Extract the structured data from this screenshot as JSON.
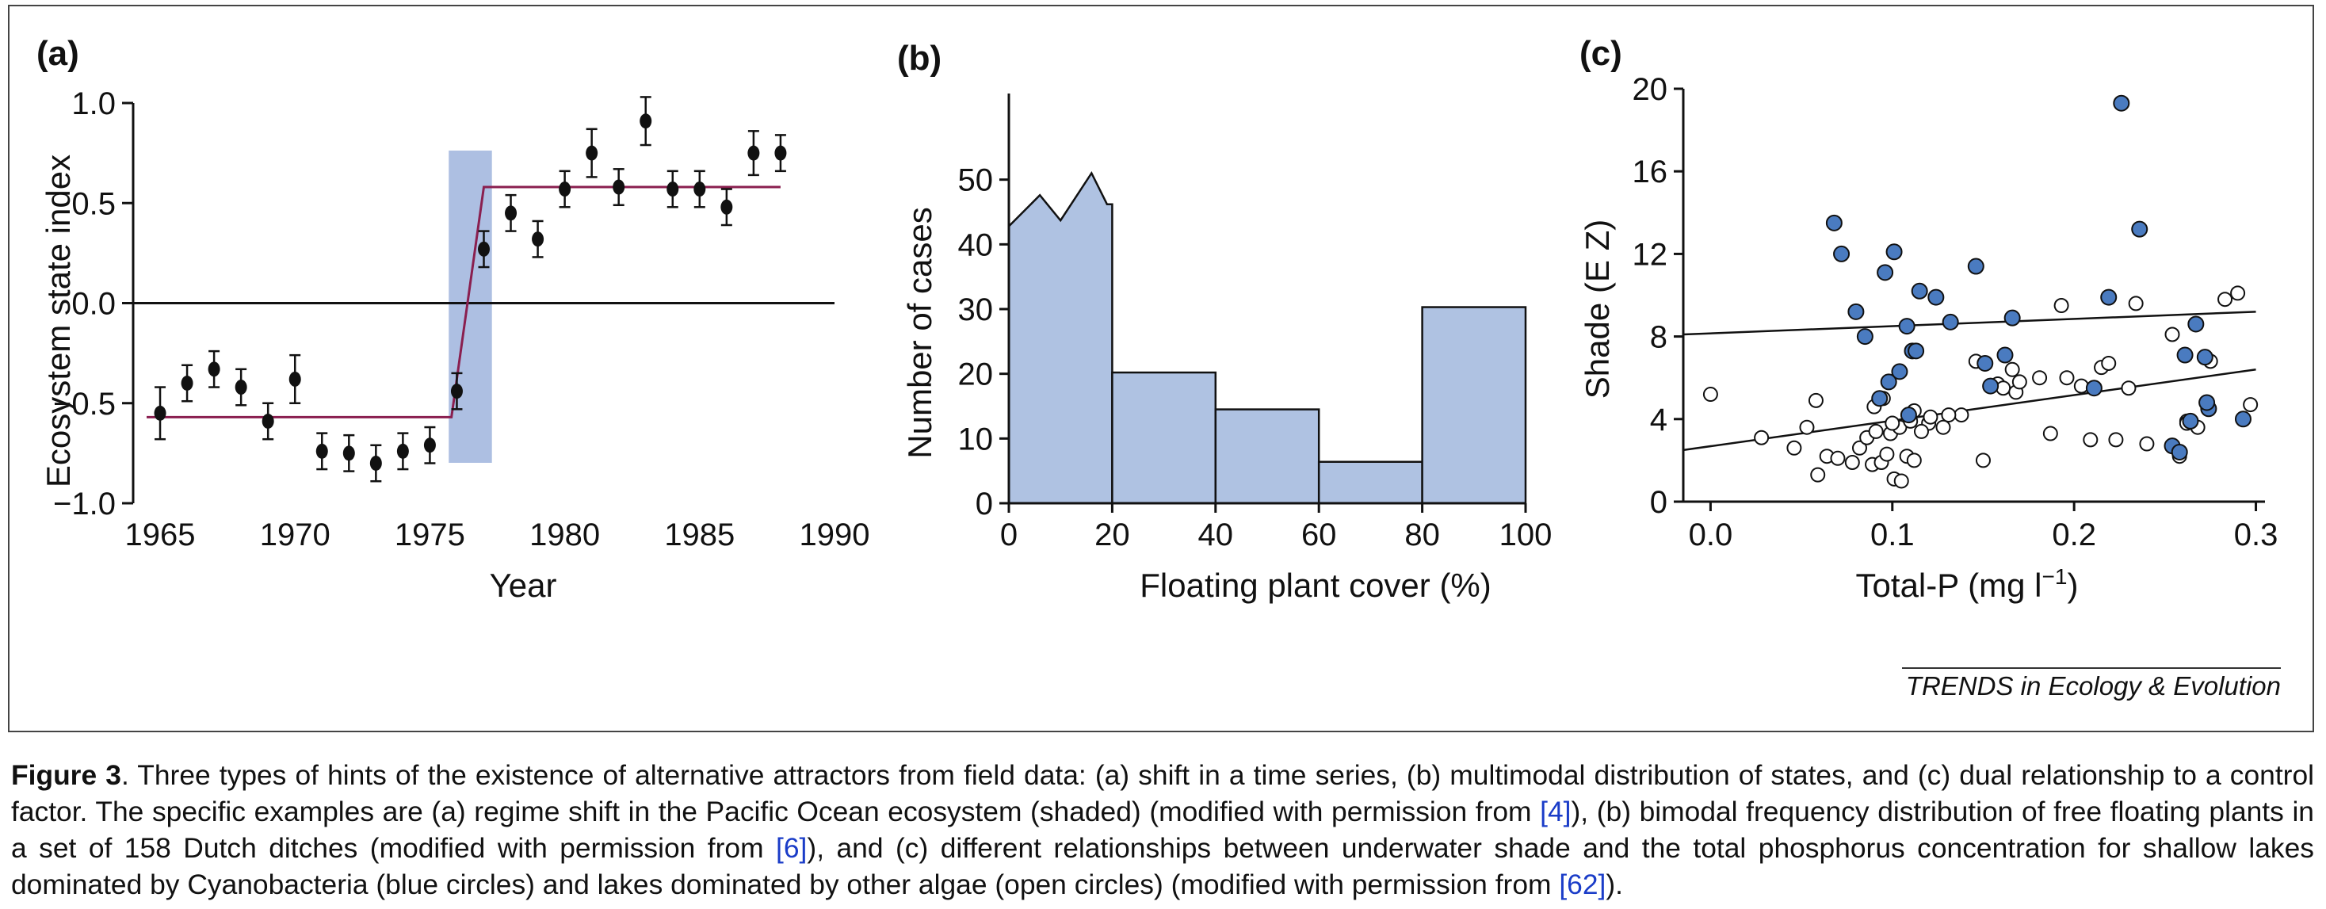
{
  "colors": {
    "shade_band": "#adbfe2",
    "fit_line_a": "#8a1f4f",
    "fit_line_a_flat": "#5a4a8a",
    "bar_fill": "#afc2e2",
    "cyano_fill": "#4a7bc0"
  },
  "source_credit": "TRENDS in Ecology & Evolution",
  "caption": {
    "lead": "Figure 3",
    "text_1": ". Three types of hints of the existence of alternative attractors from field data: (a) shift in a time series, (b) multimodal distribution of states, and (c) dual relationship to a control factor. The specific examples are (a) regime shift in the Pacific Ocean ecosystem (shaded) (modified with permission from ",
    "ref_1": "[4]",
    "text_2": "), (b) bimodal frequency distribution of free floating plants in a set of 158 Dutch ditches (modified with permission from ",
    "ref_2": "[6]",
    "text_3": "), and (c) different relationships between underwater shade and the total phosphorus concentration for shallow lakes dominated by Cyanobacteria (blue circles) and lakes dominated by other algae (open circles) (modified with permission from ",
    "ref_3": "[62]",
    "text_4": ")."
  },
  "chart_data": [
    {
      "panel_label": "(a)",
      "type": "scatter",
      "title": "",
      "xlabel": "Year",
      "ylabel": "Ecosystem state index",
      "xlim": [
        1964,
        1990
      ],
      "ylim": [
        -1.0,
        1.0
      ],
      "x_ticks": [
        1965,
        1970,
        1975,
        1980,
        1985,
        1990
      ],
      "y_ticks": [
        -1.0,
        -0.5,
        0.0,
        0.5,
        1.0
      ],
      "y_tick_labels": [
        "−1.0",
        "−0.5",
        "0.0",
        "0.5",
        "1.0"
      ],
      "shaded_period": [
        1975.7,
        1977.3
      ],
      "series": [
        {
          "x": [
            1965,
            1966,
            1967,
            1968,
            1969,
            1970,
            1971,
            1972,
            1973,
            1974,
            1975,
            1976,
            1977,
            1978,
            1979,
            1980,
            1981,
            1982,
            1983,
            1984,
            1985,
            1986,
            1987,
            1988
          ],
          "y": [
            -0.55,
            -0.4,
            -0.33,
            -0.42,
            -0.59,
            -0.38,
            -0.74,
            -0.75,
            -0.8,
            -0.74,
            -0.71,
            -0.44,
            0.27,
            0.45,
            0.32,
            0.57,
            0.75,
            0.58,
            0.91,
            0.57,
            0.57,
            0.48,
            0.75,
            0.75
          ],
          "error": [
            0.13,
            0.09,
            0.09,
            0.09,
            0.09,
            0.12,
            0.09,
            0.09,
            0.09,
            0.09,
            0.09,
            0.09,
            0.09,
            0.09,
            0.09,
            0.09,
            0.12,
            0.09,
            0.12,
            0.09,
            0.09,
            0.09,
            0.11,
            0.09
          ]
        }
      ],
      "fit_line": {
        "x": [
          1964.5,
          1975.8,
          1977.0,
          1988.0
        ],
        "y": [
          -0.57,
          -0.57,
          0.58,
          0.58
        ]
      }
    },
    {
      "panel_label": "(b)",
      "type": "bar",
      "title": "",
      "xlabel": "Floating plant cover (%)",
      "ylabel": "Number of cases",
      "xlim": [
        0,
        100
      ],
      "ylim": [
        0,
        62
      ],
      "x_ticks": [
        0,
        20,
        40,
        60,
        80,
        100
      ],
      "y_ticks": [
        0,
        10,
        20,
        30,
        40,
        50
      ],
      "bins": [
        {
          "from": 20,
          "to": 40,
          "value": 20.2
        },
        {
          "from": 40,
          "to": 60,
          "value": 14.5
        },
        {
          "from": 60,
          "to": 80,
          "value": 6.4
        },
        {
          "from": 80,
          "to": 100,
          "value": 30.3
        }
      ],
      "first_bin_profile": {
        "x": [
          0,
          6,
          10,
          16,
          19,
          20
        ],
        "y": [
          42.8,
          47.6,
          43.7,
          51.0,
          46.2,
          46.2
        ]
      }
    },
    {
      "panel_label": "(c)",
      "type": "scatter",
      "title": "",
      "xlabel": "Total-P (mg l−1)",
      "ylabel": "Shade (E Z)",
      "xlim": [
        -0.015,
        0.305
      ],
      "ylim": [
        0,
        20
      ],
      "x_ticks": [
        0.0,
        0.1,
        0.2,
        0.3
      ],
      "x_tick_labels": [
        "0.0",
        "0.1",
        "0.2",
        "0.3"
      ],
      "y_ticks": [
        0,
        4,
        8,
        12,
        16,
        20
      ],
      "series": [
        {
          "name": "Cyanobacteria",
          "style": "filled",
          "x": [
            0.068,
            0.072,
            0.08,
            0.085,
            0.096,
            0.101,
            0.108,
            0.111,
            0.093,
            0.098,
            0.104,
            0.109,
            0.113,
            0.115,
            0.124,
            0.132,
            0.146,
            0.151,
            0.154,
            0.162,
            0.166,
            0.211,
            0.219,
            0.226,
            0.236,
            0.261,
            0.267,
            0.272,
            0.274,
            0.293,
            0.264,
            0.273,
            0.254,
            0.258
          ],
          "y": [
            13.5,
            12.0,
            9.2,
            8.0,
            11.1,
            12.1,
            8.5,
            7.3,
            5.0,
            5.8,
            6.3,
            4.2,
            7.3,
            10.2,
            9.9,
            8.7,
            11.4,
            6.7,
            5.6,
            7.1,
            8.9,
            5.5,
            9.9,
            19.3,
            13.2,
            7.1,
            8.6,
            7.0,
            4.5,
            4.0,
            3.9,
            4.8,
            2.7,
            2.4
          ]
        },
        {
          "name": "Other algae",
          "style": "open",
          "x": [
            0.0,
            0.028,
            0.046,
            0.059,
            0.064,
            0.07,
            0.078,
            0.082,
            0.086,
            0.089,
            0.094,
            0.097,
            0.101,
            0.105,
            0.108,
            0.112,
            0.12,
            0.128,
            0.138,
            0.146,
            0.15,
            0.158,
            0.161,
            0.168,
            0.181,
            0.187,
            0.193,
            0.196,
            0.204,
            0.209,
            0.215,
            0.219,
            0.223,
            0.23,
            0.234,
            0.24,
            0.254,
            0.258,
            0.262,
            0.268,
            0.275,
            0.283,
            0.29,
            0.297,
            0.09,
            0.095,
            0.099,
            0.104,
            0.11,
            0.116,
            0.053,
            0.058,
            0.091,
            0.1,
            0.112,
            0.121,
            0.131,
            0.166,
            0.17,
            0.262
          ],
          "y": [
            5.2,
            3.1,
            2.6,
            1.3,
            2.2,
            2.1,
            1.9,
            2.6,
            3.1,
            1.8,
            1.9,
            2.3,
            1.1,
            1.0,
            2.2,
            2.0,
            3.8,
            3.6,
            4.2,
            6.8,
            2.0,
            5.7,
            5.5,
            5.3,
            6.0,
            3.3,
            9.5,
            6.0,
            5.6,
            3.0,
            6.5,
            6.7,
            3.0,
            5.5,
            9.6,
            2.8,
            8.1,
            2.2,
            3.9,
            3.6,
            6.8,
            9.8,
            10.1,
            4.7,
            4.6,
            5.0,
            3.3,
            3.6,
            3.9,
            3.4,
            3.6,
            4.9,
            3.4,
            3.8,
            4.4,
            4.1,
            4.2,
            6.4,
            5.8,
            3.8
          ]
        }
      ],
      "fit_lines": [
        {
          "x": [
            -0.015,
            0.3
          ],
          "y": [
            8.1,
            9.2
          ]
        },
        {
          "x": [
            -0.015,
            0.3
          ],
          "y": [
            2.5,
            6.4
          ]
        }
      ]
    }
  ]
}
